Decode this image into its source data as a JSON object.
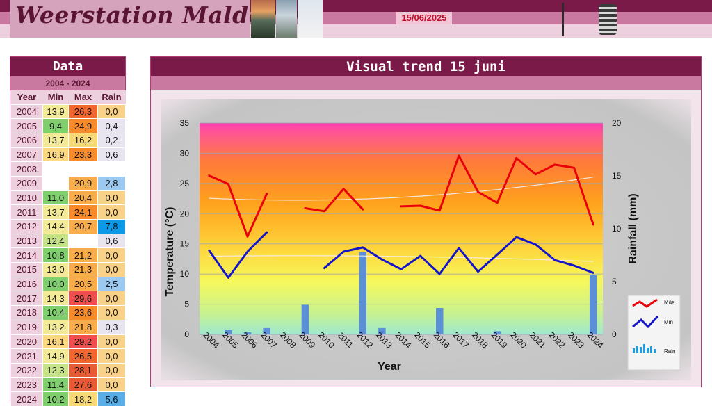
{
  "header": {
    "logo_text": "Weerstation Malderen",
    "date": "15/06/2025"
  },
  "colors": {
    "brand_dark": "#7a1a48",
    "brand_mid": "#c9799f",
    "brand_light": "#ecd0dd",
    "max_line": "#e8000a",
    "min_line": "#1414c8",
    "rain_bar": "#5b8fd6"
  },
  "data_panel": {
    "title": "Data",
    "range": "2004 - 2024",
    "columns": [
      "Year",
      "Min",
      "Max",
      "Rain"
    ],
    "rows": [
      {
        "year": "2004",
        "min": "13,9",
        "max": "26,3",
        "rain": "0,0"
      },
      {
        "year": "2005",
        "min": "9,4",
        "max": "24,9",
        "rain": "0,4"
      },
      {
        "year": "2006",
        "min": "13,7",
        "max": "16,2",
        "rain": "0,2"
      },
      {
        "year": "2007",
        "min": "16,9",
        "max": "23,3",
        "rain": "0,6"
      },
      {
        "year": "2008",
        "min": "",
        "max": "",
        "rain": ""
      },
      {
        "year": "2009",
        "min": "",
        "max": "20,9",
        "rain": "2,8"
      },
      {
        "year": "2010",
        "min": "11,0",
        "max": "20,4",
        "rain": "0,0"
      },
      {
        "year": "2011",
        "min": "13,7",
        "max": "24,1",
        "rain": "0,0"
      },
      {
        "year": "2012",
        "min": "14,4",
        "max": "20,7",
        "rain": "7,8"
      },
      {
        "year": "2013",
        "min": "12,4",
        "max": "",
        "rain": "0,6"
      },
      {
        "year": "2014",
        "min": "10,8",
        "max": "21,2",
        "rain": "0,0"
      },
      {
        "year": "2015",
        "min": "13,0",
        "max": "21,3",
        "rain": "0,0"
      },
      {
        "year": "2016",
        "min": "10,0",
        "max": "20,5",
        "rain": "2,5"
      },
      {
        "year": "2017",
        "min": "14,3",
        "max": "29,6",
        "rain": "0,0"
      },
      {
        "year": "2018",
        "min": "10,4",
        "max": "23,6",
        "rain": "0,0"
      },
      {
        "year": "2019",
        "min": "13,2",
        "max": "21,8",
        "rain": "0,3"
      },
      {
        "year": "2020",
        "min": "16,1",
        "max": "29,2",
        "rain": "0,0"
      },
      {
        "year": "2021",
        "min": "14,9",
        "max": "26,5",
        "rain": "0,0"
      },
      {
        "year": "2022",
        "min": "12,3",
        "max": "28,1",
        "rain": "0,0"
      },
      {
        "year": "2023",
        "min": "11,4",
        "max": "27,6",
        "rain": "0,0"
      },
      {
        "year": "2024",
        "min": "10,2",
        "max": "18,2",
        "rain": "5,6"
      }
    ]
  },
  "chart_panel": {
    "title": "Visual trend 15 juni"
  },
  "chart_data": {
    "type": "line",
    "title": "Visual trend 15 juni",
    "xlabel": "Year",
    "ylabel": "Temperature (°C)",
    "y2label": "Rainfall (mm)",
    "x": [
      "2004",
      "2005",
      "2006",
      "2007",
      "2008",
      "2009",
      "2010",
      "2011",
      "2012",
      "2013",
      "2014",
      "2015",
      "2016",
      "2017",
      "2018",
      "2019",
      "2020",
      "2021",
      "2022",
      "2023",
      "2024"
    ],
    "ylim": [
      0,
      35
    ],
    "y_ticks": [
      0,
      5,
      10,
      15,
      20,
      25,
      30,
      35
    ],
    "y2lim": [
      0,
      20
    ],
    "y2_ticks": [
      0,
      5,
      10,
      15,
      20
    ],
    "grid": true,
    "legend_position": "bottom-right",
    "series": [
      {
        "name": "Max",
        "type": "line",
        "axis": "left",
        "values": [
          26.3,
          24.9,
          16.2,
          23.3,
          null,
          20.9,
          20.4,
          24.1,
          20.7,
          null,
          21.2,
          21.3,
          20.5,
          29.6,
          23.6,
          21.8,
          29.2,
          26.5,
          28.1,
          27.6,
          18.2
        ]
      },
      {
        "name": "Min",
        "type": "line",
        "axis": "left",
        "values": [
          13.9,
          9.4,
          13.7,
          16.9,
          null,
          null,
          11.0,
          13.7,
          14.4,
          12.4,
          10.8,
          13.0,
          10.0,
          14.3,
          10.4,
          13.2,
          16.1,
          14.9,
          12.3,
          11.4,
          10.2
        ]
      },
      {
        "name": "Rain",
        "type": "bar",
        "axis": "right",
        "values": [
          0.0,
          0.4,
          0.2,
          0.6,
          null,
          2.8,
          0.0,
          0.0,
          7.8,
          0.6,
          0.0,
          0.0,
          2.5,
          0.0,
          0.0,
          0.3,
          0.0,
          0.0,
          0.0,
          0.0,
          5.6
        ]
      }
    ]
  }
}
